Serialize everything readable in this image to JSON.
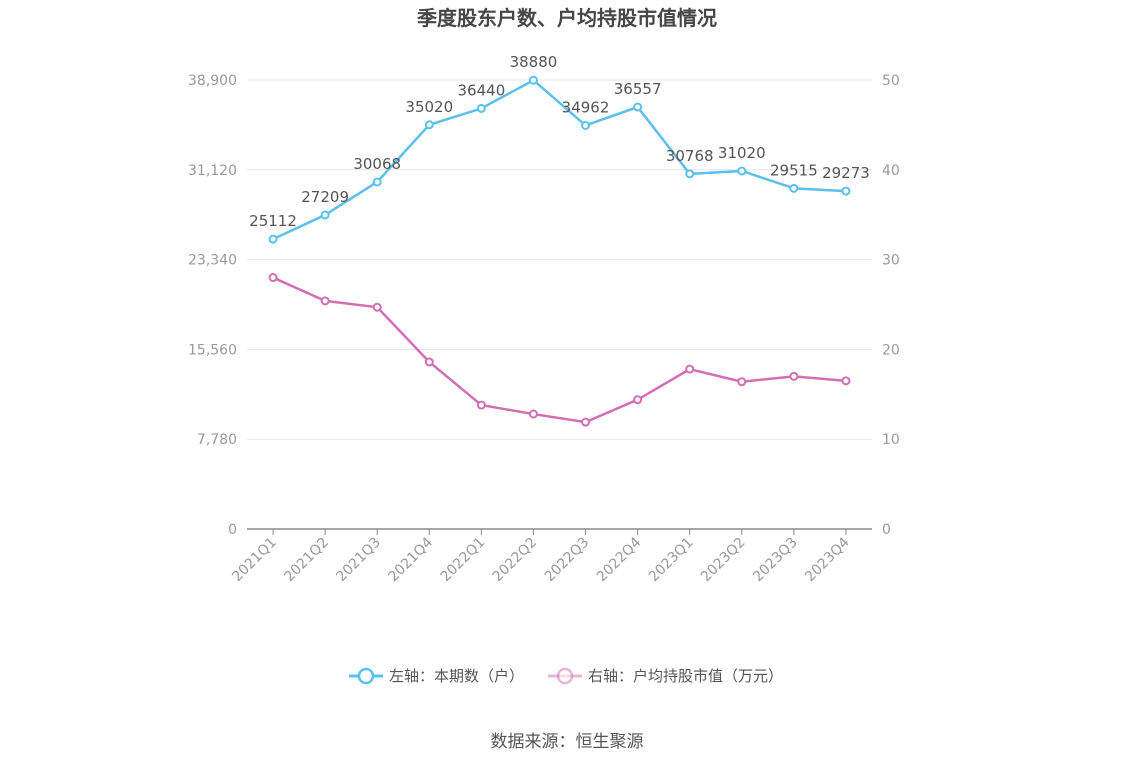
{
  "chart_data": {
    "type": "line",
    "title": "季度股东户数、户均持股市值情况",
    "categories": [
      "2021Q1",
      "2021Q2",
      "2021Q3",
      "2021Q4",
      "2022Q1",
      "2022Q2",
      "2022Q3",
      "2022Q4",
      "2023Q1",
      "2023Q2",
      "2023Q3",
      "2023Q4"
    ],
    "left_axis": {
      "ylim": [
        0,
        38900
      ],
      "ticks": [
        "0",
        "7,780",
        "15,560",
        "23,340",
        "31,120",
        "38,900"
      ],
      "tick_values": [
        0,
        7780,
        15560,
        23340,
        31120,
        38900
      ]
    },
    "right_axis": {
      "ylim": [
        0,
        50
      ],
      "ticks": [
        "0",
        "10",
        "20",
        "30",
        "40",
        "50"
      ],
      "tick_values": [
        0,
        10,
        20,
        30,
        40,
        50
      ]
    },
    "grid": true,
    "legend_position": "bottom",
    "series": [
      {
        "name": "左轴：本期数（户）",
        "axis": "left",
        "color": "#5bc0eb",
        "values": [
          25112,
          27209,
          30068,
          35020,
          36440,
          38880,
          34962,
          36557,
          30768,
          31020,
          29515,
          29273
        ],
        "labels": [
          "25112",
          "27209",
          "30068",
          "35020",
          "36440",
          "38880",
          "34962",
          "36557",
          "30768",
          "31020",
          "29515",
          "29273"
        ]
      },
      {
        "name": "右轴：户均持股市值（万元）",
        "axis": "right",
        "color": "#d46eb3",
        "values": [
          28.0,
          25.4,
          24.7,
          18.6,
          13.8,
          12.8,
          11.9,
          14.4,
          17.8,
          16.4,
          17.0,
          16.5
        ]
      }
    ]
  },
  "source": "数据来源：恒生聚源"
}
